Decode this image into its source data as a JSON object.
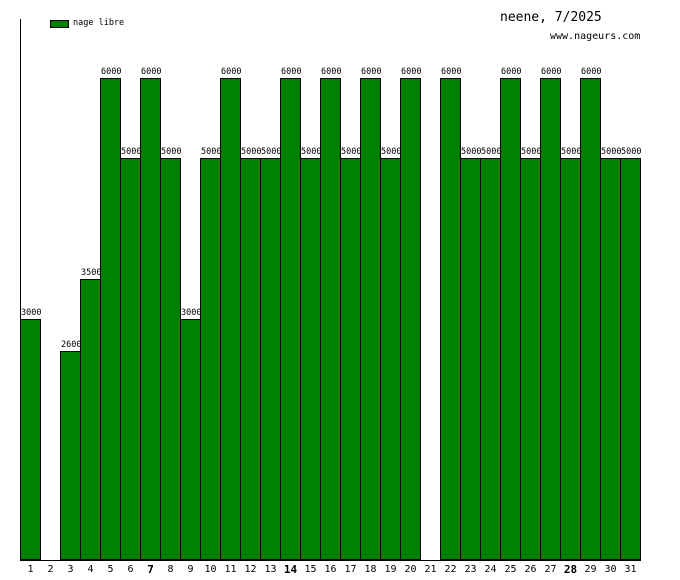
{
  "header": {
    "title": "neene, 7/2025",
    "website": "www.nageurs.com"
  },
  "legend": {
    "label": "nage libre",
    "swatch_color": "#008000"
  },
  "colors": {
    "bar_fill": "#008000",
    "bar_border": "#000000",
    "text": "#000000",
    "background": "#ffffff"
  },
  "chart_data": {
    "type": "bar",
    "title": "neene, 7/2025",
    "series_name": "nage libre",
    "xlabel": "day of month",
    "ylabel": "",
    "ylim": [
      0,
      6000
    ],
    "grid": false,
    "legend_position": "top-left",
    "categories": [
      1,
      2,
      3,
      4,
      5,
      6,
      7,
      8,
      9,
      10,
      11,
      12,
      13,
      14,
      15,
      16,
      17,
      18,
      19,
      20,
      21,
      22,
      23,
      24,
      25,
      26,
      27,
      28,
      29,
      30,
      31
    ],
    "values": [
      3000,
      null,
      2600,
      3500,
      6000,
      5000,
      6000,
      5000,
      3000,
      5000,
      6000,
      5000,
      5000,
      6000,
      5000,
      6000,
      5000,
      6000,
      5000,
      6000,
      null,
      6000,
      5000,
      5000,
      6000,
      5000,
      6000,
      5000,
      6000,
      5000,
      5000
    ],
    "bold_categories": [
      7,
      14,
      28
    ],
    "bar_color": "#008000"
  }
}
